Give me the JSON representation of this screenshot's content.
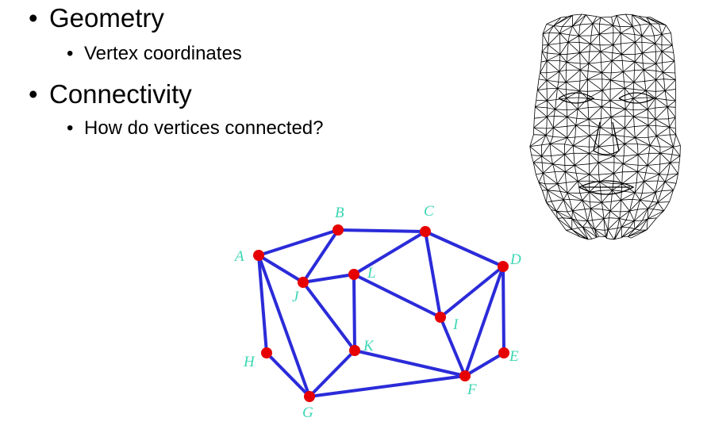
{
  "bullets": [
    {
      "text": "Geometry",
      "children": [
        "Vertex coordinates"
      ]
    },
    {
      "text": "Connectivity",
      "children": [
        "How do vertices connected?"
      ]
    }
  ],
  "bullet_glyph": "•",
  "colors": {
    "edge": "#2b2bd9",
    "vertex": "#e60000",
    "label": "#3dd6b4",
    "face_mesh": "#000000"
  },
  "graph": {
    "vertices": [
      {
        "id": "A",
        "label": "A"
      },
      {
        "id": "B",
        "label": "B"
      },
      {
        "id": "C",
        "label": "C"
      },
      {
        "id": "D",
        "label": "D"
      },
      {
        "id": "E",
        "label": "E"
      },
      {
        "id": "F",
        "label": "F"
      },
      {
        "id": "G",
        "label": "G"
      },
      {
        "id": "H",
        "label": "H"
      },
      {
        "id": "I",
        "label": "I"
      },
      {
        "id": "J",
        "label": "J"
      },
      {
        "id": "K",
        "label": "K"
      },
      {
        "id": "L",
        "label": "L"
      }
    ],
    "edges": [
      [
        "A",
        "B"
      ],
      [
        "B",
        "C"
      ],
      [
        "A",
        "J"
      ],
      [
        "B",
        "J"
      ],
      [
        "J",
        "L"
      ],
      [
        "L",
        "C"
      ],
      [
        "C",
        "D"
      ],
      [
        "C",
        "I"
      ],
      [
        "L",
        "I"
      ],
      [
        "L",
        "K"
      ],
      [
        "J",
        "K"
      ],
      [
        "A",
        "H"
      ],
      [
        "A",
        "G"
      ],
      [
        "H",
        "G"
      ],
      [
        "G",
        "K"
      ],
      [
        "G",
        "F"
      ],
      [
        "K",
        "F"
      ],
      [
        "I",
        "F"
      ],
      [
        "I",
        "D"
      ],
      [
        "D",
        "F"
      ],
      [
        "D",
        "E"
      ],
      [
        "E",
        "F"
      ]
    ]
  },
  "face_icon": "wireframe-face-mesh"
}
